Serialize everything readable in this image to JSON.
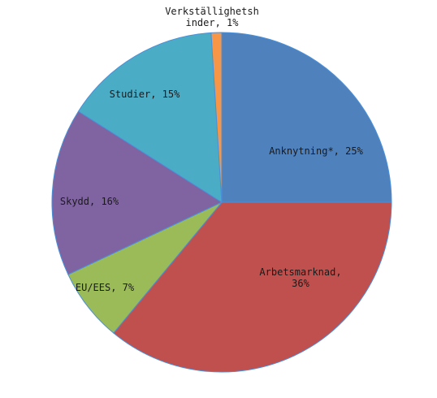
{
  "chart_data": {
    "type": "pie",
    "title": "",
    "slices": [
      {
        "label_lines": [
          "Anknytning*, 25%"
        ],
        "value": 25,
        "color": "#4F81BD"
      },
      {
        "label_lines": [
          "Arbetsmarknad,",
          "36%"
        ],
        "value": 36,
        "color": "#C0504D"
      },
      {
        "label_lines": [
          "EU/EES, 7%"
        ],
        "value": 7,
        "color": "#9BBB59"
      },
      {
        "label_lines": [
          "Skydd, 16%"
        ],
        "value": 16,
        "color": "#8064A2"
      },
      {
        "label_lines": [
          "Studier, 15%"
        ],
        "value": 15,
        "color": "#4BACC6"
      },
      {
        "label_lines": [
          "Verkställighetsh",
          "inder, 1%"
        ],
        "value": 1,
        "color": "#F79646"
      }
    ],
    "start_angle_deg": 0,
    "direction": "clockwise",
    "edge_color": "#4A90D9"
  }
}
